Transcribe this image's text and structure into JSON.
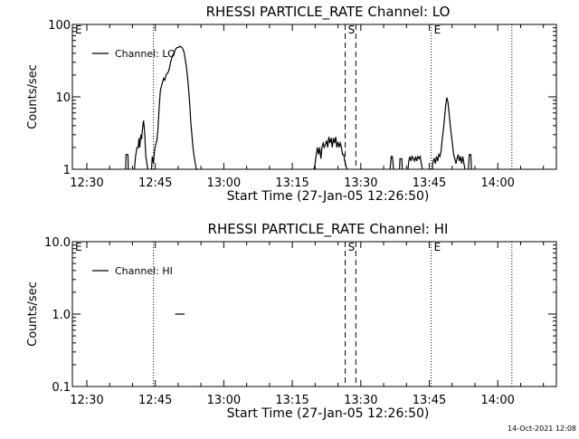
{
  "timestamp": "14-Oct-2021 12:08",
  "chart_data": [
    {
      "type": "line",
      "title": "RHESSI PARTICLE_RATE Channel: LO",
      "xlabel": "Start Time (27-Jan-05 12:26:50)",
      "ylabel": "Counts/sec",
      "yscale": "log",
      "ylim": [
        1,
        100
      ],
      "yticks": [
        1,
        10,
        100
      ],
      "ytick_labels": [
        "1",
        "10",
        "100"
      ],
      "xlim": [
        "12:26:50",
        "14:12:50"
      ],
      "xticks": [
        "12:30",
        "12:45",
        "13:00",
        "13:15",
        "13:30",
        "13:45",
        "14:00"
      ],
      "legend": "top-left",
      "grid": false,
      "series": [
        {
          "name": "Channel: LO",
          "color": "#000000",
          "segments": [
            {
              "x": [
                "12:38:30",
                "12:38:35",
                "12:39:00",
                "12:39:05"
              ],
              "y": [
                1,
                1.6,
                1.6,
                1
              ]
            },
            {
              "x": [
                "12:40:25",
                "12:40:40",
                "12:41:00",
                "12:41:15",
                "12:41:25",
                "12:41:35",
                "12:41:50",
                "12:42:00",
                "12:42:15",
                "12:42:25",
                "12:42:40",
                "12:42:55",
                "12:43:10",
                "12:43:20"
              ],
              "y": [
                1,
                1.5,
                2,
                2,
                2.7,
                2,
                3,
                2.6,
                4,
                4.7,
                3.2,
                1.5,
                1.2,
                1
              ]
            },
            {
              "x": [
                "12:44:10",
                "12:44:20",
                "12:44:35",
                "12:44:50",
                "12:45:05",
                "12:45:20",
                "12:45:35",
                "12:45:50",
                "12:46:05",
                "12:46:20",
                "12:46:35",
                "12:46:50",
                "12:47:05",
                "12:47:20",
                "12:47:35",
                "12:47:50",
                "12:48:05",
                "12:48:20",
                "12:48:35",
                "12:48:50",
                "12:49:05",
                "12:49:20",
                "12:49:35",
                "12:49:50",
                "12:50:05",
                "12:50:20",
                "12:50:35",
                "12:50:50",
                "12:51:05",
                "12:51:20",
                "12:51:35",
                "12:51:50",
                "12:52:05",
                "12:52:20",
                "12:52:35",
                "12:52:45",
                "12:53:00",
                "12:53:15",
                "12:53:30",
                "12:53:45",
                "12:54:00",
                "12:54:15"
              ],
              "y": [
                1,
                1.5,
                1.2,
                1.8,
                2.2,
                2.5,
                3.6,
                7,
                12,
                14,
                16,
                18,
                17,
                20,
                21,
                22,
                25,
                30,
                34,
                38,
                40,
                44,
                47,
                48,
                48,
                50,
                49,
                48,
                45,
                40,
                32,
                25,
                18,
                12,
                7,
                4.6,
                3,
                2,
                1.5,
                1.2,
                1,
                1
              ]
            },
            {
              "x": [
                "13:19:45",
                "13:20:00",
                "13:20:15",
                "13:20:30",
                "13:20:45",
                "13:21:00",
                "13:21:15",
                "13:21:30",
                "13:21:45",
                "13:22:00",
                "13:22:15",
                "13:22:30",
                "13:22:45",
                "13:23:00",
                "13:23:15",
                "13:23:30",
                "13:23:45",
                "13:24:00",
                "13:24:15",
                "13:24:30",
                "13:24:45",
                "13:25:00",
                "13:25:15",
                "13:25:30",
                "13:25:45",
                "13:26:00",
                "13:26:15",
                "13:26:30",
                "13:26:45",
                "13:27:00"
              ],
              "y": [
                1,
                1.2,
                1.6,
                2,
                1.6,
                2,
                1.4,
                2,
                2.3,
                2,
                2.2,
                2.5,
                2,
                2.8,
                2.3,
                2.7,
                2,
                2.7,
                2.3,
                2.8,
                2,
                2.4,
                2,
                2.3,
                2,
                1.6,
                1.6,
                1.3,
                1.1,
                1
              ]
            },
            {
              "x": [
                "13:36:25",
                "13:36:40",
                "13:36:55",
                "13:37:10"
              ],
              "y": [
                1,
                1.5,
                1.5,
                1
              ]
            },
            {
              "x": [
                "13:38:30",
                "13:38:35",
                "13:39:00",
                "13:39:05"
              ],
              "y": [
                1,
                1.4,
                1.4,
                1
              ]
            },
            {
              "x": [
                "13:40:20",
                "13:40:30",
                "13:40:45",
                "13:41:00",
                "13:41:15",
                "13:41:30",
                "13:41:45",
                "13:42:00",
                "13:42:15",
                "13:42:30",
                "13:42:45",
                "13:43:00",
                "13:43:15",
                "13:43:30"
              ],
              "y": [
                1,
                1.3,
                1.5,
                1.3,
                1.5,
                1.4,
                1.3,
                1.5,
                1.3,
                1.5,
                1.4,
                1.5,
                1.2,
                1
              ]
            },
            {
              "x": [
                "13:45:40",
                "13:45:50",
                "13:46:05",
                "13:46:20",
                "13:46:35",
                "13:46:50",
                "13:47:05",
                "13:47:20",
                "13:47:35",
                "13:47:50",
                "13:48:05",
                "13:48:20",
                "13:48:35",
                "13:48:50",
                "13:49:05",
                "13:49:20",
                "13:49:35",
                "13:49:50",
                "13:50:05",
                "13:50:20",
                "13:50:35",
                "13:50:50",
                "13:51:05",
                "13:51:20",
                "13:51:35",
                "13:51:50",
                "13:52:05",
                "13:52:20",
                "13:52:35",
                "13:52:50"
              ],
              "y": [
                1,
                1.3,
                1.4,
                1.2,
                1.5,
                1.3,
                1.6,
                1.5,
                1.8,
                2.6,
                3.5,
                5,
                7.5,
                9.8,
                8.5,
                6,
                4,
                3,
                2.2,
                1.6,
                1.4,
                1.2,
                1.4,
                1.6,
                1.3,
                1.5,
                1.2,
                1.5,
                1.2,
                1
              ]
            },
            {
              "x": [
                "13:53:35",
                "13:53:45",
                "13:54:05",
                "13:54:15"
              ],
              "y": [
                1,
                1.6,
                1.6,
                1
              ]
            }
          ]
        }
      ],
      "markers": [
        {
          "label": "E",
          "time": "12:26:50",
          "style": "none"
        },
        {
          "label": "",
          "time": "12:44:35",
          "style": "dotted"
        },
        {
          "label": "S",
          "time": "13:26:35",
          "style": "dashed"
        },
        {
          "label": "",
          "time": "13:28:55",
          "style": "dashed"
        },
        {
          "label": "E",
          "time": "13:45:25",
          "style": "dotted"
        },
        {
          "label": "",
          "time": "14:03:05",
          "style": "dotted"
        }
      ]
    },
    {
      "type": "line",
      "title": "RHESSI PARTICLE_RATE Channel: HI",
      "xlabel": "Start Time (27-Jan-05 12:26:50)",
      "ylabel": "Counts/sec",
      "yscale": "log",
      "ylim": [
        0.1,
        10
      ],
      "yticks": [
        0.1,
        1,
        10
      ],
      "ytick_labels": [
        "0.1",
        "1.0",
        "10.0"
      ],
      "xlim": [
        "12:26:50",
        "14:12:50"
      ],
      "xticks": [
        "12:30",
        "12:45",
        "13:00",
        "13:15",
        "13:30",
        "13:45",
        "14:00"
      ],
      "legend": "top-left",
      "grid": false,
      "series": [
        {
          "name": "Channel: HI",
          "color": "#000000",
          "segments": [
            {
              "x": [
                "12:49:20",
                "12:51:25"
              ],
              "y": [
                1,
                1
              ]
            }
          ]
        }
      ],
      "markers": [
        {
          "label": "E",
          "time": "12:26:50",
          "style": "none"
        },
        {
          "label": "",
          "time": "12:44:35",
          "style": "dotted"
        },
        {
          "label": "S",
          "time": "13:26:35",
          "style": "dashed"
        },
        {
          "label": "",
          "time": "13:28:55",
          "style": "dashed"
        },
        {
          "label": "E",
          "time": "13:45:25",
          "style": "dotted"
        },
        {
          "label": "",
          "time": "14:03:05",
          "style": "dotted"
        }
      ]
    }
  ]
}
